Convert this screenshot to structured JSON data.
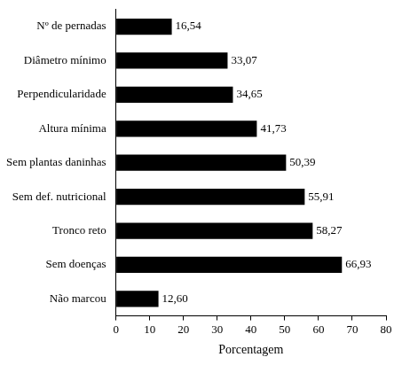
{
  "chart_data": {
    "type": "bar",
    "orientation": "horizontal",
    "categories": [
      "Nº de pernadas",
      "Diâmetro mínimo",
      "Perpendicularidade",
      "Altura mínima",
      "Sem plantas daninhas",
      "Sem def. nutricional",
      "Tronco reto",
      "Sem doenças",
      "Não marcou"
    ],
    "values": [
      16.54,
      33.07,
      34.65,
      41.73,
      50.39,
      55.91,
      58.27,
      66.93,
      12.6
    ],
    "value_labels": [
      "16,54",
      "33,07",
      "34,65",
      "41,73",
      "50,39",
      "55,91",
      "58,27",
      "66,93",
      "12,60"
    ],
    "color": "#000000",
    "xlabel": "Porcentagem",
    "xlim": [
      0,
      80
    ],
    "xticks": [
      0,
      10,
      20,
      30,
      40,
      50,
      60,
      70,
      80
    ],
    "grid": false,
    "data_labels": true
  }
}
